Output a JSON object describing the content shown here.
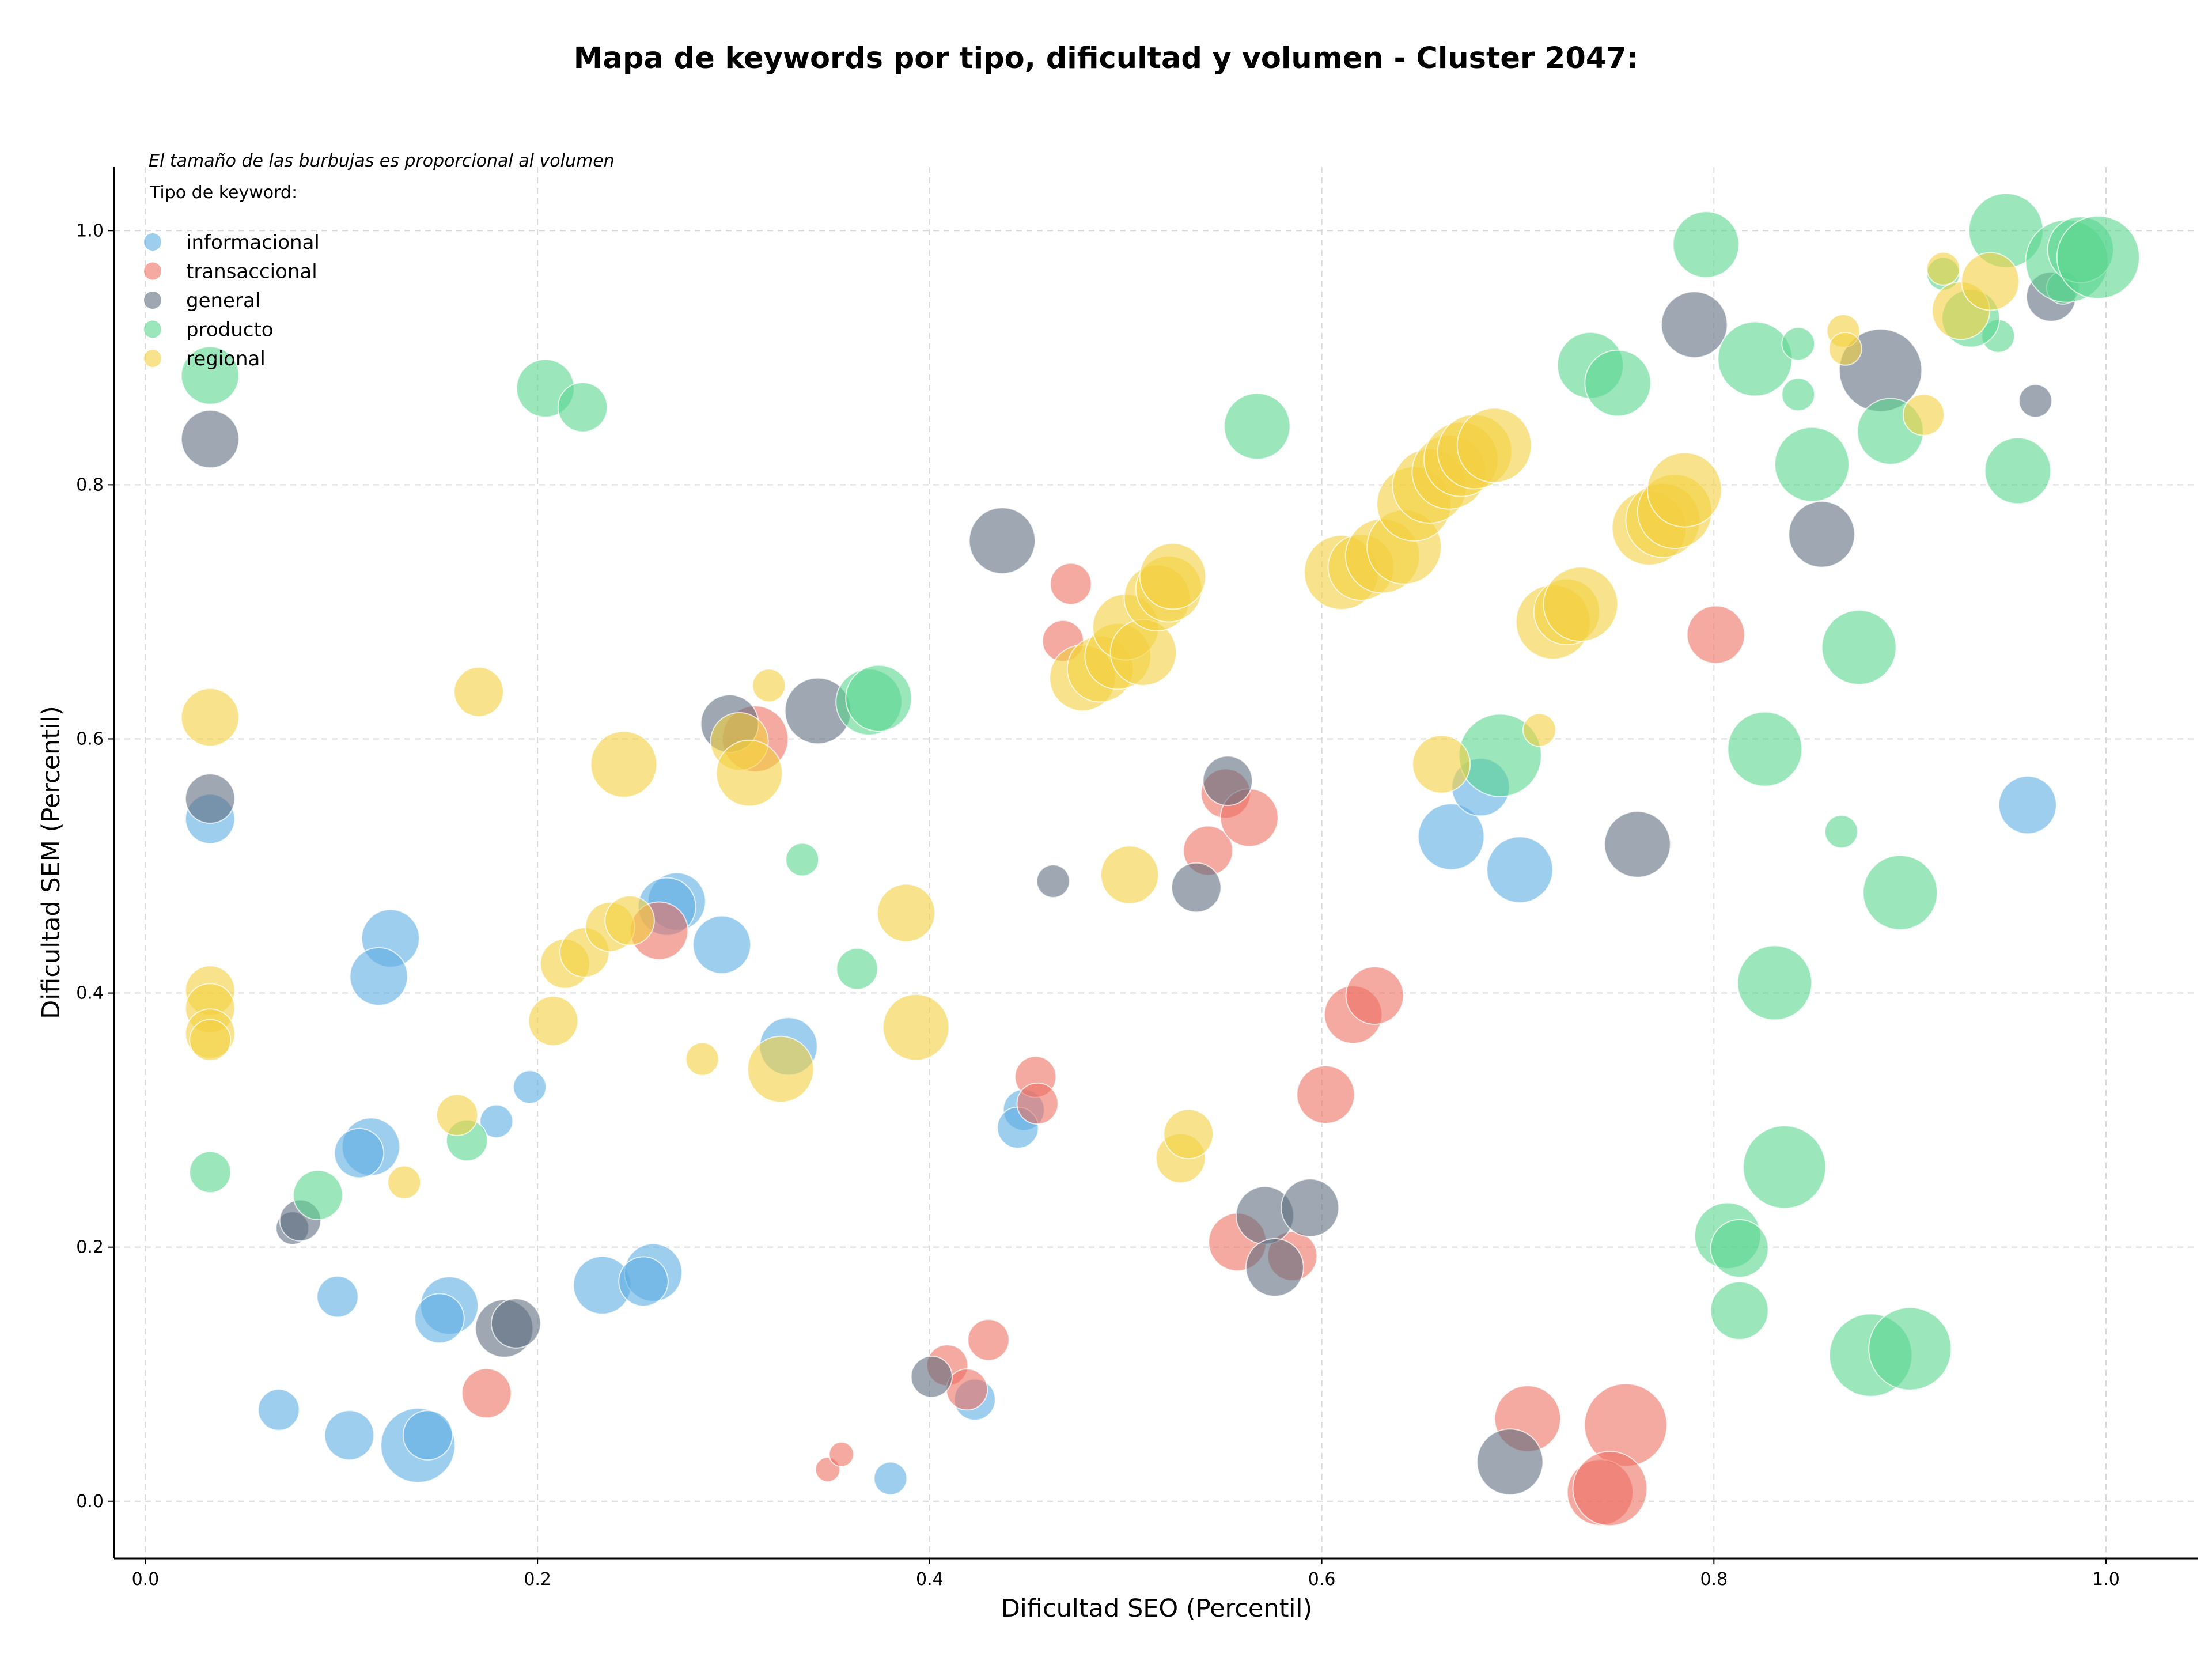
{
  "chart_data": {
    "type": "scatter",
    "title": "Mapa de keywords por tipo, dificultad y volumen - Cluster 2047:",
    "xlabel": "Dificultad SEO (Percentil)",
    "ylabel": "Dificultad SEM (Percentil)",
    "xlim": [
      -0.016,
      1.047
    ],
    "ylim": [
      -0.045,
      1.05
    ],
    "x_ticks": [
      "0.0",
      "0.2",
      "0.4",
      "0.6",
      "0.8",
      "1.0"
    ],
    "y_ticks": [
      "0.0",
      "0.2",
      "0.4",
      "0.6",
      "0.8",
      "1.0"
    ],
    "grid": true,
    "annotation": "El tamaño de las burbujas es proporcional al volumen",
    "legend_title": "Tipo de keyword:",
    "legend_position": "top-left",
    "point_format": "[x, y, size] with size = relative search volume (bubble scale 1–10)",
    "series": [
      {
        "name": "informacional",
        "color": "#5dade2",
        "points": [
          [
            0.033,
            0.537,
            4
          ],
          [
            0.125,
            0.443,
            5
          ],
          [
            0.119,
            0.413,
            5
          ],
          [
            0.115,
            0.279,
            5
          ],
          [
            0.109,
            0.274,
            4
          ],
          [
            0.179,
            0.299,
            2
          ],
          [
            0.196,
            0.326,
            2
          ],
          [
            0.098,
            0.161,
            3
          ],
          [
            0.155,
            0.154,
            5
          ],
          [
            0.15,
            0.144,
            4
          ],
          [
            0.068,
            0.072,
            3
          ],
          [
            0.104,
            0.052,
            4
          ],
          [
            0.139,
            0.044,
            7
          ],
          [
            0.144,
            0.052,
            4
          ],
          [
            0.233,
            0.17,
            5
          ],
          [
            0.259,
            0.18,
            5
          ],
          [
            0.254,
            0.173,
            4
          ],
          [
            0.271,
            0.472,
            5
          ],
          [
            0.266,
            0.468,
            5
          ],
          [
            0.294,
            0.438,
            5
          ],
          [
            0.328,
            0.358,
            5
          ],
          [
            0.448,
            0.308,
            3
          ],
          [
            0.445,
            0.294,
            3
          ],
          [
            0.423,
            0.08,
            3
          ],
          [
            0.38,
            0.018,
            2
          ],
          [
            0.666,
            0.523,
            6
          ],
          [
            0.681,
            0.562,
            5
          ],
          [
            0.701,
            0.497,
            6
          ],
          [
            0.96,
            0.548,
            5
          ]
        ]
      },
      {
        "name": "transaccional",
        "color": "#ec7063",
        "points": [
          [
            0.174,
            0.085,
            4
          ],
          [
            0.262,
            0.449,
            5
          ],
          [
            0.311,
            0.6,
            6
          ],
          [
            0.348,
            0.025,
            1
          ],
          [
            0.355,
            0.037,
            1
          ],
          [
            0.409,
            0.107,
            3
          ],
          [
            0.419,
            0.088,
            3
          ],
          [
            0.43,
            0.127,
            3
          ],
          [
            0.454,
            0.334,
            3
          ],
          [
            0.455,
            0.313,
            3
          ],
          [
            0.468,
            0.677,
            3
          ],
          [
            0.472,
            0.722,
            3
          ],
          [
            0.542,
            0.512,
            4
          ],
          [
            0.551,
            0.557,
            4
          ],
          [
            0.563,
            0.538,
            5
          ],
          [
            0.557,
            0.204,
            5
          ],
          [
            0.585,
            0.193,
            4
          ],
          [
            0.602,
            0.32,
            5
          ],
          [
            0.616,
            0.383,
            5
          ],
          [
            0.627,
            0.398,
            5
          ],
          [
            0.801,
            0.682,
            5
          ],
          [
            0.705,
            0.065,
            6
          ],
          [
            0.755,
            0.06,
            8
          ],
          [
            0.742,
            0.007,
            6
          ],
          [
            0.747,
            0.01,
            7
          ]
        ]
      },
      {
        "name": "general",
        "color": "#5d6d7e",
        "points": [
          [
            0.033,
            0.836,
            5
          ],
          [
            0.033,
            0.553,
            4
          ],
          [
            0.075,
            0.215,
            2
          ],
          [
            0.079,
            0.221,
            3
          ],
          [
            0.183,
            0.136,
            5
          ],
          [
            0.189,
            0.14,
            4
          ],
          [
            0.298,
            0.612,
            5
          ],
          [
            0.343,
            0.622,
            6
          ],
          [
            0.401,
            0.098,
            3
          ],
          [
            0.437,
            0.756,
            6
          ],
          [
            0.463,
            0.488,
            2
          ],
          [
            0.536,
            0.483,
            4
          ],
          [
            0.552,
            0.567,
            4
          ],
          [
            0.571,
            0.225,
            5
          ],
          [
            0.576,
            0.184,
            5
          ],
          [
            0.594,
            0.231,
            5
          ],
          [
            0.696,
            0.031,
            6
          ],
          [
            0.761,
            0.517,
            6
          ],
          [
            0.79,
            0.926,
            6
          ],
          [
            0.855,
            0.761,
            6
          ],
          [
            0.885,
            0.89,
            8
          ],
          [
            0.964,
            0.866,
            2
          ],
          [
            0.972,
            0.948,
            4
          ]
        ]
      },
      {
        "name": "producto",
        "color": "#58d68d",
        "points": [
          [
            0.033,
            0.886,
            5
          ],
          [
            0.033,
            0.259,
            3
          ],
          [
            0.088,
            0.241,
            4
          ],
          [
            0.164,
            0.284,
            3
          ],
          [
            0.204,
            0.876,
            5
          ],
          [
            0.223,
            0.861,
            4
          ],
          [
            0.335,
            0.505,
            2
          ],
          [
            0.363,
            0.419,
            3
          ],
          [
            0.369,
            0.629,
            6
          ],
          [
            0.374,
            0.632,
            6
          ],
          [
            0.567,
            0.846,
            6
          ],
          [
            0.691,
            0.587,
            8
          ],
          [
            0.737,
            0.894,
            6
          ],
          [
            0.751,
            0.88,
            6
          ],
          [
            0.796,
            0.989,
            6
          ],
          [
            0.821,
            0.899,
            7
          ],
          [
            0.843,
            0.911,
            2
          ],
          [
            0.843,
            0.871,
            2
          ],
          [
            0.85,
            0.816,
            7
          ],
          [
            0.826,
            0.592,
            7
          ],
          [
            0.831,
            0.408,
            7
          ],
          [
            0.836,
            0.263,
            8
          ],
          [
            0.874,
            0.672,
            7
          ],
          [
            0.865,
            0.527,
            2
          ],
          [
            0.89,
            0.842,
            6
          ],
          [
            0.895,
            0.479,
            7
          ],
          [
            0.807,
            0.209,
            6
          ],
          [
            0.813,
            0.199,
            5
          ],
          [
            0.813,
            0.15,
            5
          ],
          [
            0.88,
            0.115,
            8
          ],
          [
            0.9,
            0.12,
            8
          ],
          [
            0.917,
            0.966,
            2
          ],
          [
            0.945,
            0.917,
            2
          ],
          [
            0.949,
            1.0,
            7
          ],
          [
            0.931,
            0.931,
            5
          ],
          [
            0.955,
            0.811,
            6
          ],
          [
            0.978,
            0.955,
            2
          ],
          [
            0.98,
            0.976,
            8
          ],
          [
            0.987,
            0.985,
            6
          ],
          [
            0.996,
            0.979,
            8
          ]
        ]
      },
      {
        "name": "regional",
        "color": "#f4d03f",
        "points": [
          [
            0.033,
            0.617,
            5
          ],
          [
            0.033,
            0.402,
            4
          ],
          [
            0.033,
            0.388,
            4
          ],
          [
            0.033,
            0.368,
            4
          ],
          [
            0.033,
            0.363,
            3
          ],
          [
            0.132,
            0.251,
            2
          ],
          [
            0.159,
            0.304,
            3
          ],
          [
            0.17,
            0.637,
            4
          ],
          [
            0.208,
            0.378,
            4
          ],
          [
            0.214,
            0.423,
            4
          ],
          [
            0.224,
            0.432,
            4
          ],
          [
            0.237,
            0.452,
            4
          ],
          [
            0.244,
            0.58,
            6
          ],
          [
            0.247,
            0.457,
            4
          ],
          [
            0.284,
            0.348,
            2
          ],
          [
            0.303,
            0.598,
            5
          ],
          [
            0.308,
            0.573,
            6
          ],
          [
            0.318,
            0.642,
            2
          ],
          [
            0.324,
            0.34,
            6
          ],
          [
            0.388,
            0.463,
            5
          ],
          [
            0.393,
            0.373,
            6
          ],
          [
            0.478,
            0.648,
            6
          ],
          [
            0.487,
            0.655,
            6
          ],
          [
            0.496,
            0.665,
            6
          ],
          [
            0.5,
            0.688,
            6
          ],
          [
            0.509,
            0.668,
            6
          ],
          [
            0.502,
            0.493,
            5
          ],
          [
            0.516,
            0.711,
            6
          ],
          [
            0.522,
            0.718,
            6
          ],
          [
            0.524,
            0.728,
            6
          ],
          [
            0.528,
            0.27,
            4
          ],
          [
            0.532,
            0.289,
            4
          ],
          [
            0.61,
            0.731,
            7
          ],
          [
            0.62,
            0.735,
            6
          ],
          [
            0.631,
            0.744,
            7
          ],
          [
            0.642,
            0.751,
            7
          ],
          [
            0.647,
            0.785,
            7
          ],
          [
            0.655,
            0.799,
            7
          ],
          [
            0.665,
            0.81,
            7
          ],
          [
            0.671,
            0.82,
            7
          ],
          [
            0.678,
            0.826,
            7
          ],
          [
            0.688,
            0.831,
            7
          ],
          [
            0.661,
            0.58,
            5
          ],
          [
            0.711,
            0.607,
            2
          ],
          [
            0.718,
            0.692,
            7
          ],
          [
            0.725,
            0.7,
            6
          ],
          [
            0.732,
            0.706,
            7
          ],
          [
            0.767,
            0.766,
            7
          ],
          [
            0.774,
            0.772,
            7
          ],
          [
            0.78,
            0.779,
            7
          ],
          [
            0.785,
            0.796,
            7
          ],
          [
            0.866,
            0.921,
            2
          ],
          [
            0.867,
            0.907,
            2
          ],
          [
            0.907,
            0.855,
            3
          ],
          [
            0.917,
            0.97,
            2
          ],
          [
            0.926,
            0.937,
            5
          ],
          [
            0.941,
            0.96,
            5
          ]
        ]
      }
    ]
  }
}
